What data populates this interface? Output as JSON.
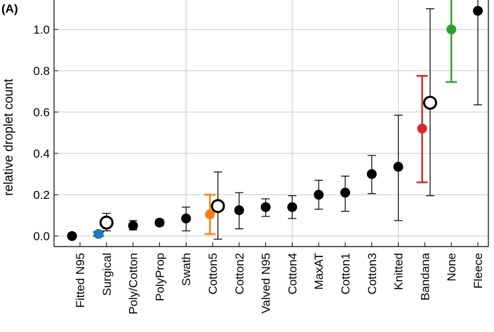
{
  "chart_data": {
    "type": "scatter",
    "panel_label": "(A)",
    "ylabel": "relative droplet count",
    "xlabel": "",
    "ylim": [
      -0.03,
      1.13
    ],
    "yticks": [
      "0.0",
      "0.2",
      "0.4",
      "0.6",
      "0.8",
      "1.0"
    ],
    "grid": true,
    "categories": [
      "Fitted N95",
      "Surgical",
      "Poly/Cotton",
      "PolyProp",
      "Swath",
      "Cotton5",
      "Cotton2",
      "Valved N95",
      "Cotton4",
      "MaxAT",
      "Cotton1",
      "Cotton3",
      "Knitted",
      "Bandana",
      "None",
      "Fleece"
    ],
    "series": [
      {
        "points": [
          {
            "x": "Fitted N95",
            "y": 0.0,
            "lo": 0.0,
            "hi": 0.0,
            "color": "#000000",
            "offset": -0.3
          },
          {
            "x": "Surgical",
            "y": 0.01,
            "lo": 0.0,
            "hi": 0.02,
            "color": "#1f77b4",
            "offset": -0.3
          },
          {
            "x": "Surgical",
            "y": 0.065,
            "lo": 0.025,
            "hi": 0.11,
            "color": "#000000",
            "offset": 0.0,
            "open": true
          },
          {
            "x": "Poly/Cotton",
            "y": 0.05,
            "lo": 0.03,
            "hi": 0.075,
            "color": "#000000",
            "offset": 0.0
          },
          {
            "x": "PolyProp",
            "y": 0.065,
            "lo": 0.05,
            "hi": 0.08,
            "color": "#000000",
            "offset": 0.0
          },
          {
            "x": "Swath",
            "y": 0.085,
            "lo": 0.025,
            "hi": 0.14,
            "color": "#000000",
            "offset": 0.0
          },
          {
            "x": "Cotton5",
            "y": 0.105,
            "lo": 0.01,
            "hi": 0.2,
            "color": "#ff7f0e",
            "offset": -0.1
          },
          {
            "x": "Cotton5",
            "y": 0.145,
            "lo": -0.015,
            "hi": 0.31,
            "color": "#000000",
            "offset": 0.2,
            "open": true
          },
          {
            "x": "Cotton2",
            "y": 0.125,
            "lo": 0.035,
            "hi": 0.21,
            "color": "#000000",
            "offset": 0.0
          },
          {
            "x": "Valved N95",
            "y": 0.14,
            "lo": 0.095,
            "hi": 0.18,
            "color": "#000000",
            "offset": 0.0
          },
          {
            "x": "Cotton4",
            "y": 0.14,
            "lo": 0.085,
            "hi": 0.195,
            "color": "#000000",
            "offset": 0.0
          },
          {
            "x": "MaxAT",
            "y": 0.2,
            "lo": 0.13,
            "hi": 0.27,
            "color": "#000000",
            "offset": 0.0
          },
          {
            "x": "Cotton1",
            "y": 0.21,
            "lo": 0.12,
            "hi": 0.29,
            "color": "#000000",
            "offset": 0.0
          },
          {
            "x": "Cotton3",
            "y": 0.3,
            "lo": 0.205,
            "hi": 0.39,
            "color": "#000000",
            "offset": 0.0
          },
          {
            "x": "Knitted",
            "y": 0.335,
            "lo": 0.075,
            "hi": 0.585,
            "color": "#000000",
            "offset": 0.0
          },
          {
            "x": "Bandana",
            "y": 0.52,
            "lo": 0.26,
            "hi": 0.775,
            "color": "#d62728",
            "offset": -0.1
          },
          {
            "x": "Bandana",
            "y": 0.645,
            "lo": 0.195,
            "hi": 1.1,
            "color": "#000000",
            "offset": 0.2,
            "open": true
          },
          {
            "x": "None",
            "y": 1.0,
            "lo": 0.745,
            "hi": 1.2,
            "color": "#2ca02c",
            "offset": 0.0
          },
          {
            "x": "Fleece",
            "y": 1.09,
            "lo": 0.635,
            "hi": 1.2,
            "color": "#000000",
            "offset": 0.0
          }
        ]
      }
    ]
  }
}
